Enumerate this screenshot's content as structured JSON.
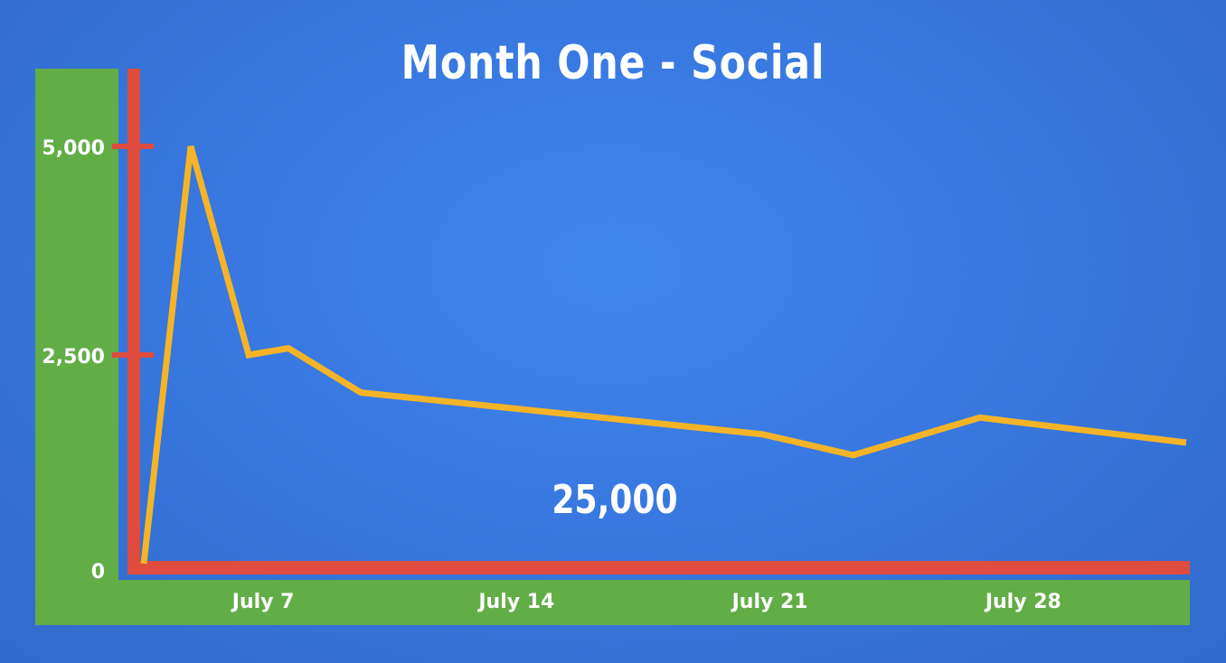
{
  "chart_data": {
    "type": "line",
    "title": "Month One - Social",
    "annotation": "25,000",
    "xlabel": "",
    "ylabel": "",
    "ylim": [
      0,
      5000
    ],
    "y_ticks": [
      {
        "value": 0,
        "label": "0"
      },
      {
        "value": 2500,
        "label": "2,500"
      },
      {
        "value": 5000,
        "label": "5,000"
      }
    ],
    "x_ticks": [
      {
        "value": 7,
        "label": "July 7"
      },
      {
        "value": 14,
        "label": "July 14"
      },
      {
        "value": 21,
        "label": "July 21"
      },
      {
        "value": 28,
        "label": "July 28"
      }
    ],
    "xlim": [
      3.6,
      32.5
    ],
    "grid": false,
    "legend": "none",
    "series": [
      {
        "x": [
          3.7,
          5.0,
          6.6,
          7.7,
          9.7,
          20.8,
          23.3,
          26.8,
          32.5
        ],
        "values": [
          0,
          5000,
          2500,
          2580,
          2050,
          1550,
          1300,
          1750,
          1450
        ]
      }
    ],
    "colors": {
      "background": "#3a7be6",
      "axis_band": "#62ad46",
      "axis_line": "#df4b3e",
      "series_line": "#f5b427",
      "text": "#ffffff"
    }
  }
}
